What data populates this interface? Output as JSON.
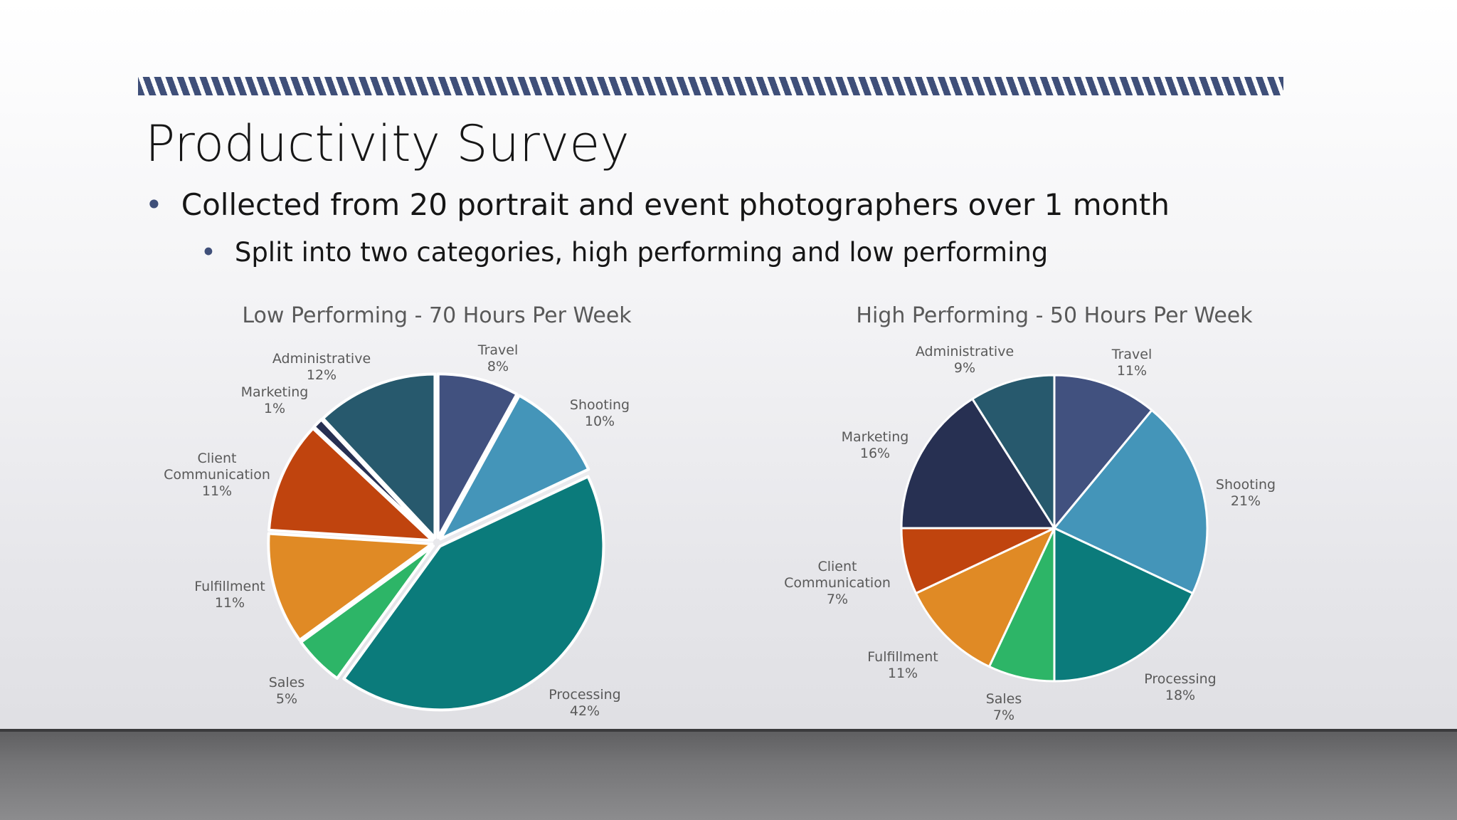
{
  "slide": {
    "title": "Productivity Survey",
    "bullets": [
      "Collected from 20 portrait and event photographers over 1 month",
      "Split into two categories, high performing and low performing"
    ]
  },
  "chart_data": [
    {
      "type": "pie",
      "title": "Low Performing - 70 Hours Per Week",
      "categories": [
        "Travel",
        "Shooting",
        "Processing",
        "Sales",
        "Fulfillment",
        "Client Communication",
        "Marketing",
        "Administrative"
      ],
      "values": [
        8,
        10,
        42,
        5,
        11,
        11,
        1,
        12
      ],
      "labels": [
        "8%",
        "10%",
        "42%",
        "5%",
        "11%",
        "11%",
        "1%",
        "12%"
      ],
      "colors": [
        "#41517f",
        "#4495b9",
        "#0b7b7b",
        "#2db567",
        "#e08a25",
        "#c0440e",
        "#273052",
        "#27596d"
      ],
      "exploded": true
    },
    {
      "type": "pie",
      "title": "High Performing - 50 Hours Per Week",
      "categories": [
        "Travel",
        "Shooting",
        "Processing",
        "Sales",
        "Fulfillment",
        "Client Communication",
        "Marketing",
        "Administrative"
      ],
      "values": [
        11,
        21,
        18,
        7,
        11,
        7,
        16,
        9
      ],
      "labels": [
        "11%",
        "21%",
        "18%",
        "7%",
        "11%",
        "7%",
        "16%",
        "9%"
      ],
      "colors": [
        "#41517f",
        "#4495b9",
        "#0b7b7b",
        "#2db567",
        "#e08a25",
        "#c0440e",
        "#273052",
        "#27596d"
      ],
      "exploded": false
    }
  ]
}
